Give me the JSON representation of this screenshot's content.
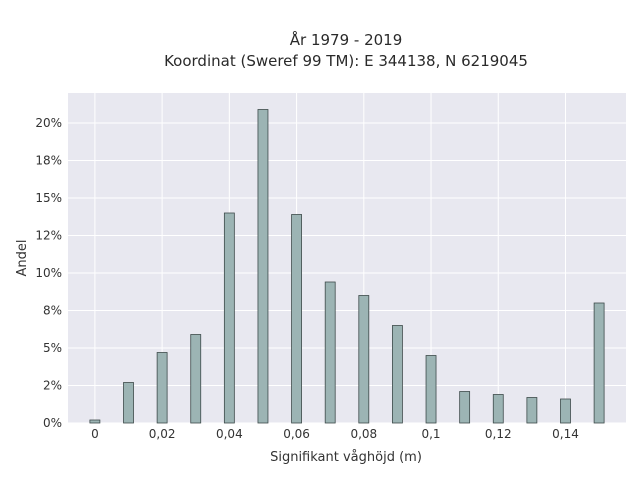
{
  "chart_data": {
    "type": "bar",
    "title_line1": "År 1979 - 2019",
    "title_line2": "Koordinat (Sweref 99 TM): E 344138, N 6219045",
    "xlabel": "Signifikant våghöjd (m)",
    "ylabel": "Andel",
    "x": [
      0.0,
      0.01,
      0.02,
      0.03,
      0.04,
      0.05,
      0.06,
      0.07,
      0.08,
      0.09,
      0.1,
      0.11,
      0.12,
      0.13,
      0.14,
      0.15
    ],
    "values": [
      0.2,
      2.7,
      4.7,
      5.9,
      14.0,
      20.9,
      13.9,
      9.4,
      8.5,
      6.5,
      4.5,
      2.1,
      1.9,
      1.7,
      1.6,
      8.0
    ],
    "ylim": [
      0,
      22
    ],
    "xlim": [
      -0.008,
      0.158
    ],
    "xticks": [
      0,
      0.02,
      0.04,
      0.06,
      0.08,
      0.1,
      0.12,
      0.14
    ],
    "xtick_labels": [
      "0",
      "0,02",
      "0,04",
      "0,06",
      "0,08",
      "0,1",
      "0,12",
      "0,14"
    ],
    "yticks": [
      0,
      2.5,
      5,
      7.5,
      10,
      12.5,
      15,
      17.5,
      20
    ],
    "ytick_labels": [
      "0%",
      "2%",
      "5%",
      "8%",
      "10%",
      "12%",
      "15%",
      "18%",
      "20%"
    ],
    "grid": true,
    "colors": {
      "bar_fill": "#9cb4b4",
      "bar_stroke": "#3d4a4a",
      "plot_bg": "#e8e8f0",
      "grid": "#ffffff"
    }
  }
}
